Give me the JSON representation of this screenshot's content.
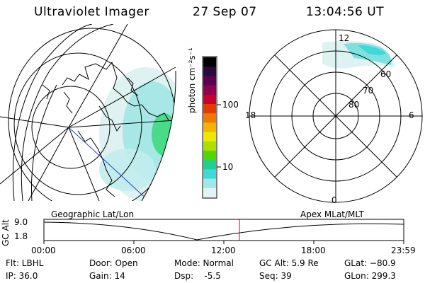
{
  "header": {
    "instrument": "Ultraviolet Imager",
    "date": "27 Sep 07",
    "time": "13:04:56 UT"
  },
  "colorbar": {
    "unit_label": "photon cm⁻²s⁻¹",
    "ticks": [
      "100",
      "10"
    ],
    "colors": [
      "#000000",
      "#2a0a3a",
      "#5b0050",
      "#900050",
      "#c8002a",
      "#e23a00",
      "#f07a00",
      "#f5b400",
      "#eaea00",
      "#a8e000",
      "#52d800",
      "#20d090",
      "#40d8d8",
      "#a0e8e8",
      "#e0f4f4"
    ]
  },
  "left_map": {
    "title": "Geographic Lat/Lon"
  },
  "right_map": {
    "title": "Apex MLat/MLT",
    "mlt_labels": [
      "12",
      "18",
      "6",
      "0"
    ],
    "mlat_labels": [
      "80",
      "70",
      "60"
    ]
  },
  "timeline": {
    "axis_title": "GC Alt",
    "y_ticks": [
      "9.0",
      "1.8"
    ],
    "x_ticks": [
      "00:00",
      "06:00",
      "12:00",
      "18:00",
      "23:59"
    ],
    "current_marker_color": "#e00000"
  },
  "info": {
    "filter": "Flt: LBHL",
    "ip": "IP: 36.0",
    "door": "Door: Open",
    "gain": "Gain: 14",
    "mode": "Mode: Normal",
    "dsp": "Dsp:    -5.5",
    "gc_alt": "GC Alt: 5.9 Re",
    "seq": "Seq: 39",
    "glat": "GLat: −80.9",
    "glon": "GLon: 299.3"
  }
}
